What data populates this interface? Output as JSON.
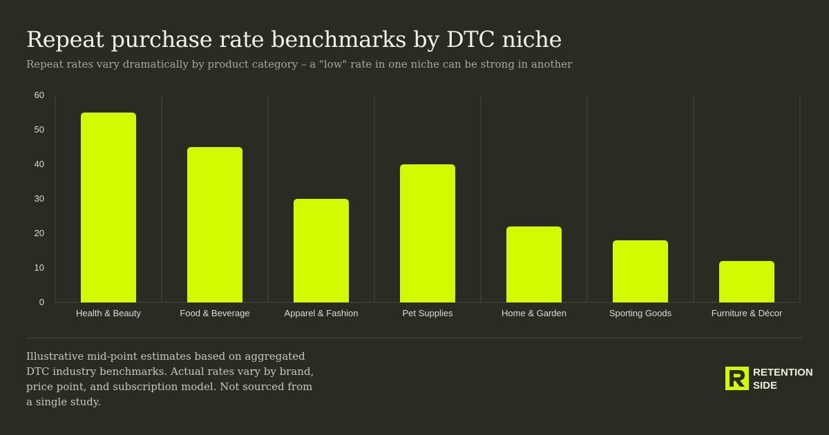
{
  "header": {
    "title": "Repeat purchase rate benchmarks by DTC niche",
    "subtitle": "Repeat rates vary dramatically by product category – a \"low\" rate in one niche can be strong in another"
  },
  "footer": {
    "note": "Illustrative mid-point estimates based on aggregated DTC industry benchmarks. Actual rates vary by brand, price point, and subscription model. Not sourced from a single study.",
    "logo_line1": "RETENTION",
    "logo_line2": "SIDE",
    "logo_icon": "retention-side-logo-icon"
  },
  "colors": {
    "background": "#2a2b22",
    "bar": "#d4fa00",
    "grid": "#45463c"
  },
  "chart_data": {
    "type": "bar",
    "title": "",
    "xlabel": "",
    "ylabel": "",
    "categories": [
      "Health & Beauty",
      "Food & Beverage",
      "Apparel & Fashion",
      "Pet Supplies",
      "Home & Garden",
      "Sporting Goods",
      "Furniture & Décor"
    ],
    "values": [
      55,
      45,
      30,
      40,
      22,
      18,
      12
    ],
    "ylim": [
      0,
      60
    ],
    "yticks": [
      0,
      10,
      20,
      30,
      40,
      50,
      60
    ],
    "grid": "vertical separators between categories",
    "legend": "none"
  }
}
